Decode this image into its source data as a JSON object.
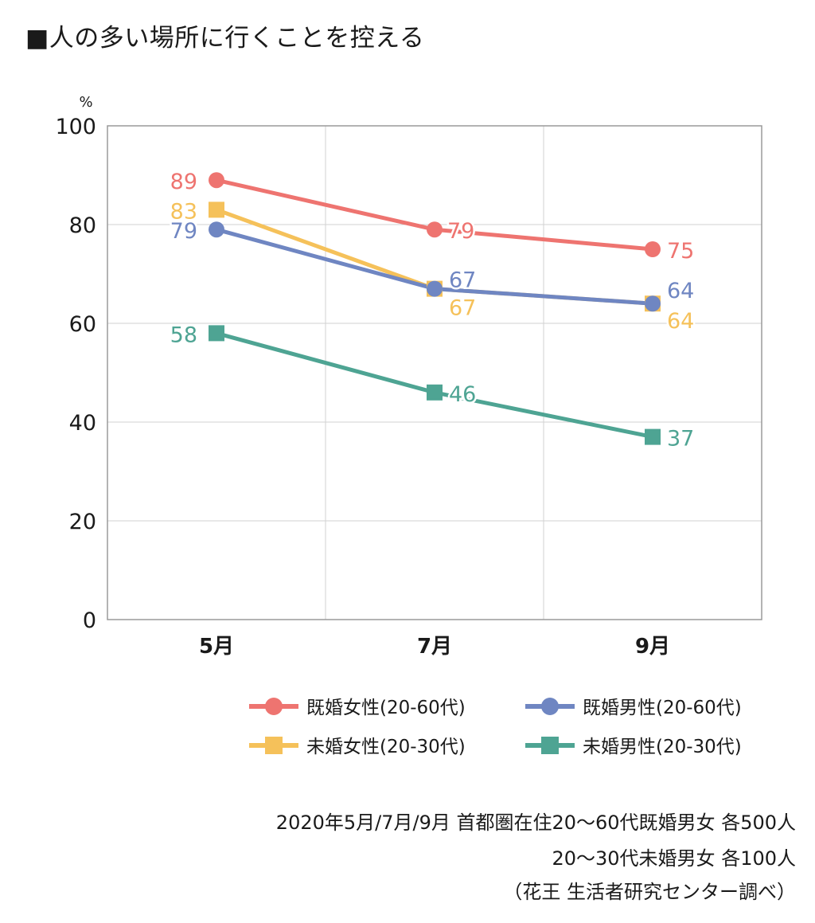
{
  "title": "■人の多い場所に行くことを控える",
  "chart_data": {
    "type": "line",
    "unit": "%",
    "categories": [
      "5月",
      "7月",
      "9月"
    ],
    "ylim": [
      0,
      100
    ],
    "yticks": [
      0,
      20,
      40,
      60,
      80,
      100
    ],
    "grid": true,
    "legend_position": "bottom-right",
    "series": [
      {
        "name": "既婚女性(20-60代)",
        "marker": "circle",
        "color": "#ee7470",
        "values": [
          89,
          79,
          75
        ]
      },
      {
        "name": "既婚男性(20-60代)",
        "marker": "circle",
        "color": "#6f86c2",
        "values": [
          79,
          67,
          64
        ]
      },
      {
        "name": "未婚女性(20-30代)",
        "marker": "square",
        "color": "#f5c15a",
        "values": [
          83,
          67,
          64
        ]
      },
      {
        "name": "未婚男性(20-30代)",
        "marker": "square",
        "color": "#4ea493",
        "values": [
          58,
          46,
          37
        ]
      }
    ]
  },
  "footnote": {
    "line1": "2020年5月/7月/9月 首都圏在住20～60代既婚男女 各500人",
    "line2": "20～30代未婚男女 各100人",
    "line3": "（花王 生活者研究センター調べ）"
  }
}
